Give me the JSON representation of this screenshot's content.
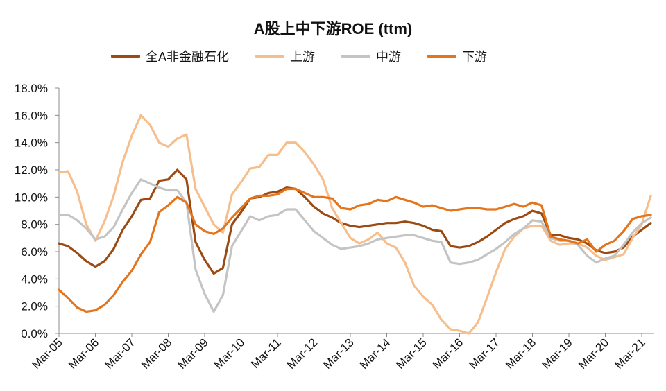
{
  "chart_data": {
    "type": "line",
    "title": "A股上中下游ROE (ttm)",
    "xlabel": "",
    "ylabel": "",
    "ylim": [
      0,
      18
    ],
    "yticks": [
      "0.0%",
      "2.0%",
      "4.0%",
      "6.0%",
      "8.0%",
      "10.0%",
      "12.0%",
      "14.0%",
      "16.0%",
      "18.0%"
    ],
    "xticks": [
      "Mar-05",
      "Mar-06",
      "Mar-07",
      "Mar-08",
      "Mar-09",
      "Mar-10",
      "Mar-11",
      "Mar-12",
      "Mar-13",
      "Mar-14",
      "Mar-15",
      "Mar-16",
      "Mar-17",
      "Mar-18",
      "Mar-19",
      "Mar-20",
      "Mar-21"
    ],
    "x_range": [
      0,
      16.25
    ],
    "legend_position": "top",
    "grid": false,
    "series": [
      {
        "name": "全A非金融石化",
        "color": "#9A4A12",
        "points": [
          [
            0,
            6.6
          ],
          [
            0.25,
            6.4
          ],
          [
            0.5,
            5.9
          ],
          [
            0.75,
            5.3
          ],
          [
            1,
            4.9
          ],
          [
            1.25,
            5.3
          ],
          [
            1.5,
            6.2
          ],
          [
            1.75,
            7.6
          ],
          [
            2,
            8.6
          ],
          [
            2.25,
            9.8
          ],
          [
            2.5,
            9.9
          ],
          [
            2.75,
            11.2
          ],
          [
            3,
            11.3
          ],
          [
            3.25,
            12.0
          ],
          [
            3.5,
            11.3
          ],
          [
            3.75,
            6.7
          ],
          [
            4,
            5.4
          ],
          [
            4.25,
            4.4
          ],
          [
            4.5,
            4.8
          ],
          [
            4.75,
            8.0
          ],
          [
            5,
            8.9
          ],
          [
            5.25,
            9.9
          ],
          [
            5.5,
            10.0
          ],
          [
            5.75,
            10.3
          ],
          [
            6,
            10.4
          ],
          [
            6.25,
            10.7
          ],
          [
            6.5,
            10.6
          ],
          [
            6.75,
            10.0
          ],
          [
            7,
            9.3
          ],
          [
            7.25,
            8.8
          ],
          [
            7.5,
            8.5
          ],
          [
            7.75,
            8.1
          ],
          [
            8,
            7.9
          ],
          [
            8.25,
            7.8
          ],
          [
            8.5,
            7.9
          ],
          [
            8.75,
            8.0
          ],
          [
            9,
            8.1
          ],
          [
            9.25,
            8.1
          ],
          [
            9.5,
            8.2
          ],
          [
            9.75,
            8.1
          ],
          [
            10,
            7.9
          ],
          [
            10.25,
            7.6
          ],
          [
            10.5,
            7.5
          ],
          [
            10.75,
            6.4
          ],
          [
            11,
            6.3
          ],
          [
            11.25,
            6.4
          ],
          [
            11.5,
            6.7
          ],
          [
            11.75,
            7.1
          ],
          [
            12,
            7.6
          ],
          [
            12.25,
            8.1
          ],
          [
            12.5,
            8.4
          ],
          [
            12.75,
            8.6
          ],
          [
            13,
            9.0
          ],
          [
            13.25,
            8.8
          ],
          [
            13.5,
            7.2
          ],
          [
            13.75,
            7.2
          ],
          [
            14,
            7.0
          ],
          [
            14.25,
            6.9
          ],
          [
            14.5,
            6.6
          ],
          [
            14.75,
            6.1
          ],
          [
            15,
            5.9
          ],
          [
            15.25,
            6.0
          ],
          [
            15.5,
            6.3
          ],
          [
            15.75,
            7.1
          ],
          [
            16,
            7.6
          ],
          [
            16.25,
            8.1
          ]
        ]
      },
      {
        "name": "上游",
        "color": "#F6BE8C",
        "points": [
          [
            0,
            11.8
          ],
          [
            0.25,
            11.9
          ],
          [
            0.5,
            10.4
          ],
          [
            0.75,
            8.0
          ],
          [
            1,
            6.8
          ],
          [
            1.25,
            8.2
          ],
          [
            1.5,
            10.1
          ],
          [
            1.75,
            12.6
          ],
          [
            2,
            14.5
          ],
          [
            2.25,
            16.0
          ],
          [
            2.5,
            15.3
          ],
          [
            2.75,
            14.0
          ],
          [
            3,
            13.7
          ],
          [
            3.25,
            14.3
          ],
          [
            3.5,
            14.6
          ],
          [
            3.75,
            10.6
          ],
          [
            4,
            9.3
          ],
          [
            4.25,
            8.0
          ],
          [
            4.5,
            7.4
          ],
          [
            4.75,
            10.2
          ],
          [
            5,
            11.1
          ],
          [
            5.25,
            12.1
          ],
          [
            5.5,
            12.2
          ],
          [
            5.75,
            13.1
          ],
          [
            6,
            13.1
          ],
          [
            6.25,
            14.0
          ],
          [
            6.5,
            14.0
          ],
          [
            6.75,
            13.3
          ],
          [
            7,
            12.4
          ],
          [
            7.25,
            11.3
          ],
          [
            7.5,
            9.2
          ],
          [
            7.75,
            8.1
          ],
          [
            8,
            7.0
          ],
          [
            8.25,
            6.6
          ],
          [
            8.5,
            6.9
          ],
          [
            8.75,
            7.4
          ],
          [
            9,
            6.6
          ],
          [
            9.25,
            6.3
          ],
          [
            9.5,
            5.2
          ],
          [
            9.75,
            3.5
          ],
          [
            10,
            2.7
          ],
          [
            10.25,
            2.1
          ],
          [
            10.5,
            1.0
          ],
          [
            10.75,
            0.3
          ],
          [
            11,
            0.2
          ],
          [
            11.25,
            0.0
          ],
          [
            11.5,
            0.8
          ],
          [
            11.75,
            2.6
          ],
          [
            12,
            4.5
          ],
          [
            12.25,
            6.2
          ],
          [
            12.5,
            7.1
          ],
          [
            12.75,
            7.7
          ],
          [
            13,
            7.9
          ],
          [
            13.25,
            7.9
          ],
          [
            13.5,
            6.8
          ],
          [
            13.75,
            6.5
          ],
          [
            14,
            6.6
          ],
          [
            14.25,
            6.6
          ],
          [
            14.5,
            6.3
          ],
          [
            14.75,
            5.7
          ],
          [
            15,
            5.4
          ],
          [
            15.25,
            5.6
          ],
          [
            15.5,
            5.8
          ],
          [
            15.75,
            7.0
          ],
          [
            16,
            8.0
          ],
          [
            16.25,
            10.1
          ]
        ]
      },
      {
        "name": "中游",
        "color": "#C4C4C4",
        "points": [
          [
            0,
            8.7
          ],
          [
            0.25,
            8.7
          ],
          [
            0.5,
            8.3
          ],
          [
            0.75,
            7.7
          ],
          [
            1,
            6.9
          ],
          [
            1.25,
            7.1
          ],
          [
            1.5,
            7.8
          ],
          [
            1.75,
            9.1
          ],
          [
            2,
            10.3
          ],
          [
            2.25,
            11.3
          ],
          [
            2.5,
            11.0
          ],
          [
            2.75,
            10.7
          ],
          [
            3,
            10.5
          ],
          [
            3.25,
            10.5
          ],
          [
            3.5,
            9.6
          ],
          [
            3.75,
            4.7
          ],
          [
            4,
            2.9
          ],
          [
            4.25,
            1.6
          ],
          [
            4.5,
            2.8
          ],
          [
            4.75,
            6.4
          ],
          [
            5,
            7.5
          ],
          [
            5.25,
            8.6
          ],
          [
            5.5,
            8.3
          ],
          [
            5.75,
            8.6
          ],
          [
            6,
            8.7
          ],
          [
            6.25,
            9.1
          ],
          [
            6.5,
            9.1
          ],
          [
            6.75,
            8.3
          ],
          [
            7,
            7.5
          ],
          [
            7.25,
            7.0
          ],
          [
            7.5,
            6.5
          ],
          [
            7.75,
            6.2
          ],
          [
            8,
            6.3
          ],
          [
            8.25,
            6.4
          ],
          [
            8.5,
            6.6
          ],
          [
            8.75,
            6.9
          ],
          [
            9,
            7.0
          ],
          [
            9.25,
            7.1
          ],
          [
            9.5,
            7.2
          ],
          [
            9.75,
            7.2
          ],
          [
            10,
            7.0
          ],
          [
            10.25,
            6.8
          ],
          [
            10.5,
            6.7
          ],
          [
            10.75,
            5.2
          ],
          [
            11,
            5.1
          ],
          [
            11.25,
            5.2
          ],
          [
            11.5,
            5.4
          ],
          [
            11.75,
            5.8
          ],
          [
            12,
            6.2
          ],
          [
            12.25,
            6.7
          ],
          [
            12.5,
            7.3
          ],
          [
            12.75,
            7.7
          ],
          [
            13,
            8.3
          ],
          [
            13.25,
            8.2
          ],
          [
            13.5,
            7.0
          ],
          [
            13.75,
            6.8
          ],
          [
            14,
            6.8
          ],
          [
            14.25,
            6.5
          ],
          [
            14.5,
            5.7
          ],
          [
            14.75,
            5.2
          ],
          [
            15,
            5.5
          ],
          [
            15.25,
            5.7
          ],
          [
            15.5,
            6.5
          ],
          [
            15.75,
            7.4
          ],
          [
            16,
            8.1
          ],
          [
            16.25,
            8.5
          ]
        ]
      },
      {
        "name": "下游",
        "color": "#E5751C",
        "points": [
          [
            0,
            3.2
          ],
          [
            0.25,
            2.6
          ],
          [
            0.5,
            1.9
          ],
          [
            0.75,
            1.6
          ],
          [
            1,
            1.7
          ],
          [
            1.25,
            2.1
          ],
          [
            1.5,
            2.8
          ],
          [
            1.75,
            3.8
          ],
          [
            2,
            4.6
          ],
          [
            2.25,
            5.8
          ],
          [
            2.5,
            6.7
          ],
          [
            2.75,
            8.9
          ],
          [
            3,
            9.4
          ],
          [
            3.25,
            10.0
          ],
          [
            3.5,
            9.6
          ],
          [
            3.75,
            8.0
          ],
          [
            4,
            7.5
          ],
          [
            4.25,
            7.3
          ],
          [
            4.5,
            7.7
          ],
          [
            4.75,
            8.5
          ],
          [
            5,
            9.2
          ],
          [
            5.25,
            9.9
          ],
          [
            5.5,
            10.1
          ],
          [
            5.75,
            10.1
          ],
          [
            6,
            10.2
          ],
          [
            6.25,
            10.6
          ],
          [
            6.5,
            10.6
          ],
          [
            6.75,
            10.3
          ],
          [
            7,
            10.0
          ],
          [
            7.25,
            10.0
          ],
          [
            7.5,
            9.9
          ],
          [
            7.75,
            9.2
          ],
          [
            8,
            9.1
          ],
          [
            8.25,
            9.4
          ],
          [
            8.5,
            9.5
          ],
          [
            8.75,
            9.8
          ],
          [
            9,
            9.7
          ],
          [
            9.25,
            10.0
          ],
          [
            9.5,
            9.8
          ],
          [
            9.75,
            9.6
          ],
          [
            10,
            9.3
          ],
          [
            10.25,
            9.4
          ],
          [
            10.5,
            9.2
          ],
          [
            10.75,
            9.0
          ],
          [
            11,
            9.1
          ],
          [
            11.25,
            9.2
          ],
          [
            11.5,
            9.2
          ],
          [
            11.75,
            9.1
          ],
          [
            12,
            9.1
          ],
          [
            12.25,
            9.3
          ],
          [
            12.5,
            9.5
          ],
          [
            12.75,
            9.3
          ],
          [
            13,
            9.6
          ],
          [
            13.25,
            9.4
          ],
          [
            13.5,
            7.1
          ],
          [
            13.75,
            6.9
          ],
          [
            14,
            6.8
          ],
          [
            14.25,
            6.6
          ],
          [
            14.5,
            6.9
          ],
          [
            14.75,
            6.0
          ],
          [
            15,
            6.5
          ],
          [
            15.25,
            6.8
          ],
          [
            15.5,
            7.5
          ],
          [
            15.75,
            8.4
          ],
          [
            16,
            8.6
          ],
          [
            16.25,
            8.7
          ]
        ]
      }
    ]
  }
}
